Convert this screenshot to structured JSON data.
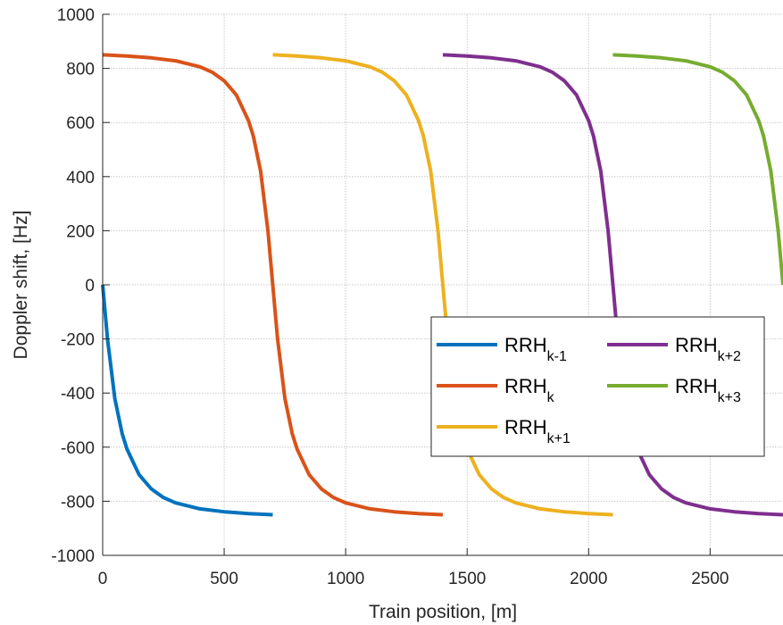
{
  "chart_data": {
    "type": "line",
    "xlabel": "Train position, [m]",
    "ylabel": "Doppler shift, [Hz]",
    "xlim": [
      0,
      2800
    ],
    "ylim": [
      -1000,
      1000
    ],
    "x_ticks": [
      0,
      500,
      1000,
      1500,
      2000,
      2500
    ],
    "y_ticks": [
      -1000,
      -800,
      -600,
      -400,
      -200,
      0,
      200,
      400,
      600,
      800,
      1000
    ],
    "grid": true,
    "legend": {
      "placement": "lower-right",
      "columns": 2
    },
    "series": [
      {
        "name": "RRH",
        "subscript": "k-1",
        "color": "#0072BD",
        "points": [
          [
            0,
            0
          ],
          [
            20,
            -200
          ],
          [
            50,
            -420
          ],
          [
            80,
            -550
          ],
          [
            100,
            -607
          ],
          [
            150,
            -702
          ],
          [
            200,
            -754
          ],
          [
            250,
            -786
          ],
          [
            300,
            -806
          ],
          [
            400,
            -828
          ],
          [
            500,
            -839
          ],
          [
            600,
            -846
          ],
          [
            700,
            -850
          ]
        ]
      },
      {
        "name": "RRH",
        "subscript": "k",
        "color": "#D95319",
        "points": [
          [
            0,
            850
          ],
          [
            100,
            846
          ],
          [
            200,
            839
          ],
          [
            300,
            828
          ],
          [
            400,
            806
          ],
          [
            450,
            786
          ],
          [
            500,
            754
          ],
          [
            550,
            702
          ],
          [
            600,
            607
          ],
          [
            620,
            550
          ],
          [
            650,
            420
          ],
          [
            680,
            200
          ],
          [
            700,
            0
          ],
          [
            720,
            -200
          ],
          [
            750,
            -420
          ],
          [
            780,
            -550
          ],
          [
            800,
            -607
          ],
          [
            850,
            -702
          ],
          [
            900,
            -754
          ],
          [
            950,
            -786
          ],
          [
            1000,
            -806
          ],
          [
            1100,
            -828
          ],
          [
            1200,
            -839
          ],
          [
            1300,
            -846
          ],
          [
            1400,
            -850
          ]
        ]
      },
      {
        "name": "RRH",
        "subscript": "k+1",
        "color": "#EDB120",
        "points": [
          [
            700,
            850
          ],
          [
            800,
            846
          ],
          [
            900,
            839
          ],
          [
            1000,
            828
          ],
          [
            1100,
            806
          ],
          [
            1150,
            786
          ],
          [
            1200,
            754
          ],
          [
            1250,
            702
          ],
          [
            1300,
            607
          ],
          [
            1320,
            550
          ],
          [
            1350,
            420
          ],
          [
            1380,
            200
          ],
          [
            1400,
            0
          ],
          [
            1420,
            -200
          ],
          [
            1450,
            -420
          ],
          [
            1480,
            -550
          ],
          [
            1500,
            -607
          ],
          [
            1550,
            -702
          ],
          [
            1600,
            -754
          ],
          [
            1650,
            -786
          ],
          [
            1700,
            -806
          ],
          [
            1800,
            -828
          ],
          [
            1900,
            -839
          ],
          [
            2000,
            -846
          ],
          [
            2100,
            -850
          ]
        ]
      },
      {
        "name": "RRH",
        "subscript": "k+2",
        "color": "#7E2F8E",
        "points": [
          [
            1400,
            850
          ],
          [
            1500,
            846
          ],
          [
            1600,
            839
          ],
          [
            1700,
            828
          ],
          [
            1800,
            806
          ],
          [
            1850,
            786
          ],
          [
            1900,
            754
          ],
          [
            1950,
            702
          ],
          [
            2000,
            607
          ],
          [
            2020,
            550
          ],
          [
            2050,
            420
          ],
          [
            2080,
            200
          ],
          [
            2100,
            0
          ],
          [
            2120,
            -200
          ],
          [
            2150,
            -420
          ],
          [
            2180,
            -550
          ],
          [
            2200,
            -607
          ],
          [
            2250,
            -702
          ],
          [
            2300,
            -754
          ],
          [
            2350,
            -786
          ],
          [
            2400,
            -806
          ],
          [
            2500,
            -828
          ],
          [
            2600,
            -839
          ],
          [
            2700,
            -846
          ],
          [
            2800,
            -850
          ]
        ]
      },
      {
        "name": "RRH",
        "subscript": "k+3",
        "color": "#77AC30",
        "points": [
          [
            2100,
            850
          ],
          [
            2200,
            846
          ],
          [
            2300,
            839
          ],
          [
            2400,
            828
          ],
          [
            2500,
            806
          ],
          [
            2550,
            786
          ],
          [
            2600,
            754
          ],
          [
            2650,
            702
          ],
          [
            2700,
            607
          ],
          [
            2720,
            550
          ],
          [
            2750,
            420
          ],
          [
            2780,
            200
          ],
          [
            2800,
            0
          ]
        ]
      }
    ]
  }
}
